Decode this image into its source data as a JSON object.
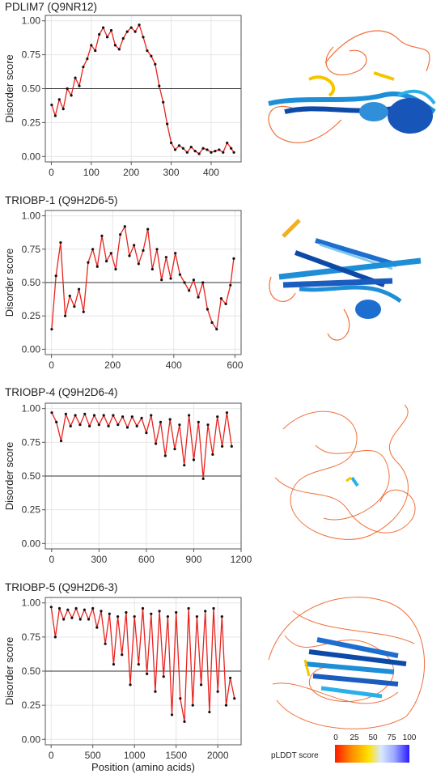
{
  "panels": [
    {
      "title": "PDLIM7 (Q9NR12)",
      "ylabel": "Disorder score",
      "xticks": [
        "0",
        "100",
        "200",
        "300",
        "400"
      ],
      "xtick_values": [
        0,
        100,
        200,
        300,
        400
      ],
      "xlim": [
        -15,
        475
      ],
      "yticks": [
        "0.00",
        "0.25",
        "0.50",
        "0.75",
        "1.00"
      ]
    },
    {
      "title": "TRIOBP-1 (Q9H2D6-5)",
      "ylabel": "Disorder score",
      "xticks": [
        "0",
        "200",
        "400",
        "600"
      ],
      "xtick_values": [
        0,
        200,
        400,
        600
      ],
      "xlim": [
        -20,
        620
      ],
      "yticks": [
        "0.00",
        "0.25",
        "0.50",
        "0.75",
        "1.00"
      ]
    },
    {
      "title": "TRIOBP-4 (Q9H2D6-4)",
      "ylabel": "Disorder score",
      "xticks": [
        "0",
        "300",
        "600",
        "900",
        "1200"
      ],
      "xtick_values": [
        0,
        300,
        600,
        900,
        1200
      ],
      "xlim": [
        -40,
        1200
      ],
      "yticks": [
        "0.00",
        "0.25",
        "0.50",
        "0.75",
        "1.00"
      ]
    },
    {
      "title": "TRIOBP-5 (Q9H2D6-3)",
      "ylabel": "Disorder score",
      "xticks": [
        "0",
        "500",
        "1000",
        "1500",
        "2000"
      ],
      "xtick_values": [
        0,
        500,
        1000,
        1500,
        2000
      ],
      "xlim": [
        -70,
        2280
      ],
      "yticks": [
        "0.00",
        "0.25",
        "0.50",
        "0.75",
        "1.00"
      ]
    }
  ],
  "xlabel": "Position (amino acids)",
  "legend": {
    "label": "pLDDT score",
    "ticks": [
      "0",
      "25",
      "50",
      "75",
      "100"
    ]
  },
  "colors": {
    "line": "#e8231f",
    "points": "#111111",
    "threshold": "#333333",
    "grid": "#e6e6e6"
  },
  "chart_data": [
    {
      "type": "line",
      "title": "PDLIM7 (Q9NR12)",
      "xlabel": "",
      "ylabel": "Disorder score",
      "ylim": [
        0,
        1
      ],
      "threshold": 0.5,
      "x": [
        1,
        10,
        20,
        30,
        40,
        50,
        60,
        70,
        80,
        90,
        100,
        110,
        120,
        130,
        140,
        150,
        160,
        170,
        180,
        190,
        200,
        210,
        220,
        230,
        240,
        250,
        260,
        270,
        280,
        290,
        300,
        310,
        320,
        330,
        340,
        350,
        360,
        370,
        380,
        390,
        400,
        410,
        420,
        430,
        440,
        450,
        457
      ],
      "y": [
        0.38,
        0.3,
        0.42,
        0.35,
        0.5,
        0.45,
        0.58,
        0.52,
        0.66,
        0.72,
        0.82,
        0.78,
        0.9,
        0.95,
        0.88,
        0.93,
        0.82,
        0.79,
        0.87,
        0.92,
        0.95,
        0.92,
        0.97,
        0.88,
        0.78,
        0.74,
        0.68,
        0.52,
        0.4,
        0.24,
        0.1,
        0.05,
        0.08,
        0.06,
        0.03,
        0.07,
        0.04,
        0.02,
        0.06,
        0.05,
        0.03,
        0.04,
        0.05,
        0.03,
        0.1,
        0.06,
        0.03
      ]
    },
    {
      "type": "line",
      "title": "TRIOBP-1 (Q9H2D6-5)",
      "xlabel": "",
      "ylabel": "Disorder score",
      "ylim": [
        0,
        1
      ],
      "threshold": 0.5,
      "x": [
        1,
        15,
        30,
        45,
        60,
        75,
        90,
        105,
        120,
        135,
        150,
        165,
        180,
        195,
        210,
        225,
        240,
        255,
        270,
        285,
        300,
        315,
        330,
        345,
        360,
        375,
        390,
        405,
        420,
        435,
        450,
        465,
        480,
        495,
        510,
        525,
        540,
        555,
        570,
        585,
        596
      ],
      "y": [
        0.15,
        0.55,
        0.8,
        0.25,
        0.4,
        0.32,
        0.45,
        0.28,
        0.65,
        0.75,
        0.62,
        0.85,
        0.66,
        0.72,
        0.6,
        0.86,
        0.92,
        0.7,
        0.78,
        0.64,
        0.74,
        0.9,
        0.6,
        0.75,
        0.52,
        0.69,
        0.53,
        0.72,
        0.56,
        0.5,
        0.44,
        0.52,
        0.39,
        0.5,
        0.3,
        0.2,
        0.15,
        0.38,
        0.34,
        0.48,
        0.68
      ]
    },
    {
      "type": "line",
      "title": "TRIOBP-4 (Q9H2D6-4)",
      "xlabel": "",
      "ylabel": "Disorder score",
      "ylim": [
        0,
        1
      ],
      "threshold": 0.5,
      "x": [
        1,
        30,
        60,
        90,
        120,
        150,
        180,
        210,
        240,
        270,
        300,
        330,
        360,
        390,
        420,
        450,
        480,
        510,
        540,
        570,
        600,
        630,
        660,
        690,
        720,
        750,
        780,
        810,
        840,
        870,
        900,
        930,
        960,
        990,
        1020,
        1050,
        1080,
        1110,
        1140
      ],
      "y": [
        0.97,
        0.9,
        0.76,
        0.96,
        0.87,
        0.95,
        0.88,
        0.96,
        0.87,
        0.95,
        0.88,
        0.95,
        0.87,
        0.95,
        0.88,
        0.94,
        0.86,
        0.94,
        0.87,
        0.93,
        0.82,
        0.95,
        0.74,
        0.9,
        0.65,
        0.92,
        0.7,
        0.88,
        0.58,
        0.95,
        0.62,
        0.9,
        0.48,
        0.88,
        0.66,
        0.94,
        0.72,
        0.97,
        0.72
      ]
    },
    {
      "type": "line",
      "title": "TRIOBP-5 (Q9H2D6-3)",
      "xlabel": "Position (amino acids)",
      "ylabel": "Disorder score",
      "ylim": [
        0,
        1
      ],
      "threshold": 0.5,
      "x": [
        1,
        50,
        100,
        150,
        200,
        250,
        300,
        350,
        400,
        450,
        500,
        550,
        600,
        650,
        700,
        750,
        800,
        850,
        900,
        950,
        1000,
        1050,
        1100,
        1150,
        1200,
        1250,
        1300,
        1350,
        1400,
        1450,
        1500,
        1550,
        1600,
        1650,
        1700,
        1750,
        1800,
        1850,
        1900,
        1950,
        2000,
        2050,
        2100,
        2150,
        2200
      ],
      "y": [
        0.97,
        0.75,
        0.96,
        0.88,
        0.95,
        0.89,
        0.96,
        0.88,
        0.95,
        0.88,
        0.96,
        0.82,
        0.94,
        0.7,
        0.92,
        0.55,
        0.9,
        0.62,
        0.93,
        0.4,
        0.9,
        0.55,
        0.96,
        0.48,
        0.92,
        0.35,
        0.94,
        0.46,
        0.9,
        0.18,
        0.93,
        0.3,
        0.13,
        0.96,
        0.25,
        0.9,
        0.4,
        0.94,
        0.2,
        0.96,
        0.35,
        0.9,
        0.25,
        0.45,
        0.3
      ]
    }
  ]
}
